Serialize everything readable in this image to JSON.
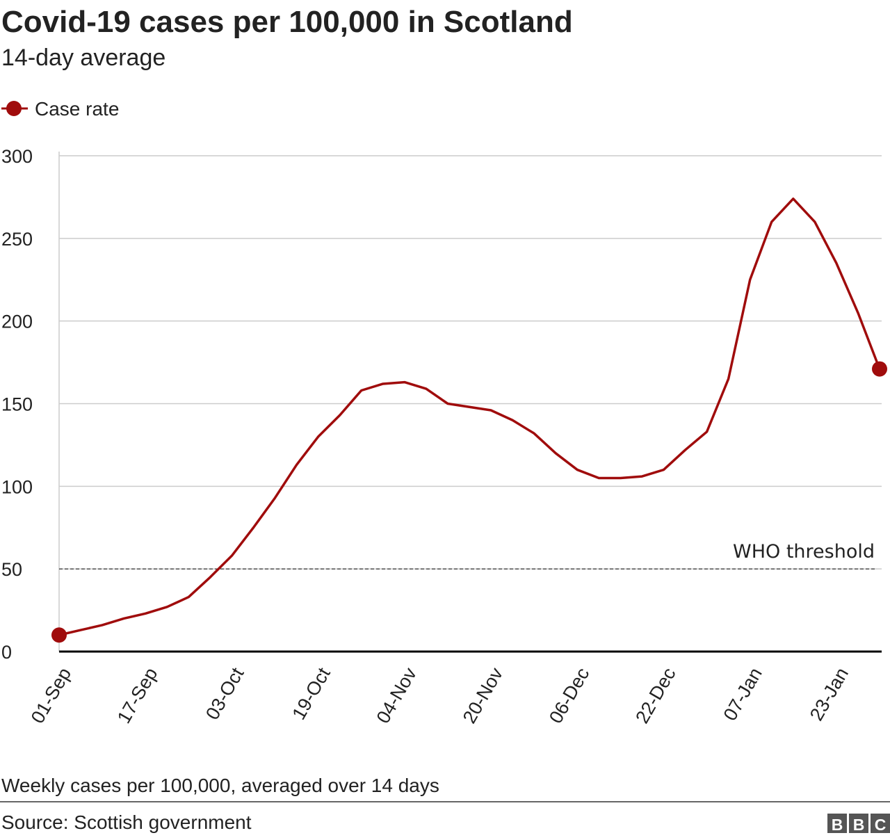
{
  "chart_data": {
    "type": "line",
    "title": "Covid-19 cases per 100,000 in Scotland",
    "subtitle": "14-day average",
    "categories": [
      "01-Sep",
      null,
      null,
      null,
      "17-Sep",
      null,
      null,
      null,
      "03-Oct",
      null,
      null,
      null,
      "19-Oct",
      null,
      null,
      null,
      "04-Nov",
      null,
      null,
      null,
      "20-Nov",
      null,
      null,
      null,
      "06-Dec",
      null,
      null,
      null,
      "22-Dec",
      null,
      null,
      null,
      "07-Jan",
      null,
      null,
      null,
      "23-Jan",
      null,
      null
    ],
    "series": [
      {
        "name": "Case rate",
        "color": "#a00c0c",
        "values": [
          10,
          13,
          16,
          20,
          23,
          27,
          33,
          45,
          58,
          75,
          93,
          113,
          130,
          143,
          158,
          162,
          163,
          159,
          150,
          148,
          146,
          140,
          132,
          120,
          110,
          105,
          105,
          106,
          110,
          122,
          133,
          165,
          225,
          260,
          274,
          260,
          235,
          205,
          171
        ]
      }
    ],
    "ylim": [
      0,
      300
    ],
    "yticks": [
      0,
      50,
      100,
      150,
      200,
      250,
      300
    ],
    "grid": true,
    "legend": "top-left",
    "threshold": {
      "value": 50,
      "label": "WHO threshold"
    },
    "footnote": "Weekly cases per 100,000, averaged over 14 days",
    "source": "Source: Scottish government",
    "logo": [
      "B",
      "B",
      "C"
    ]
  }
}
